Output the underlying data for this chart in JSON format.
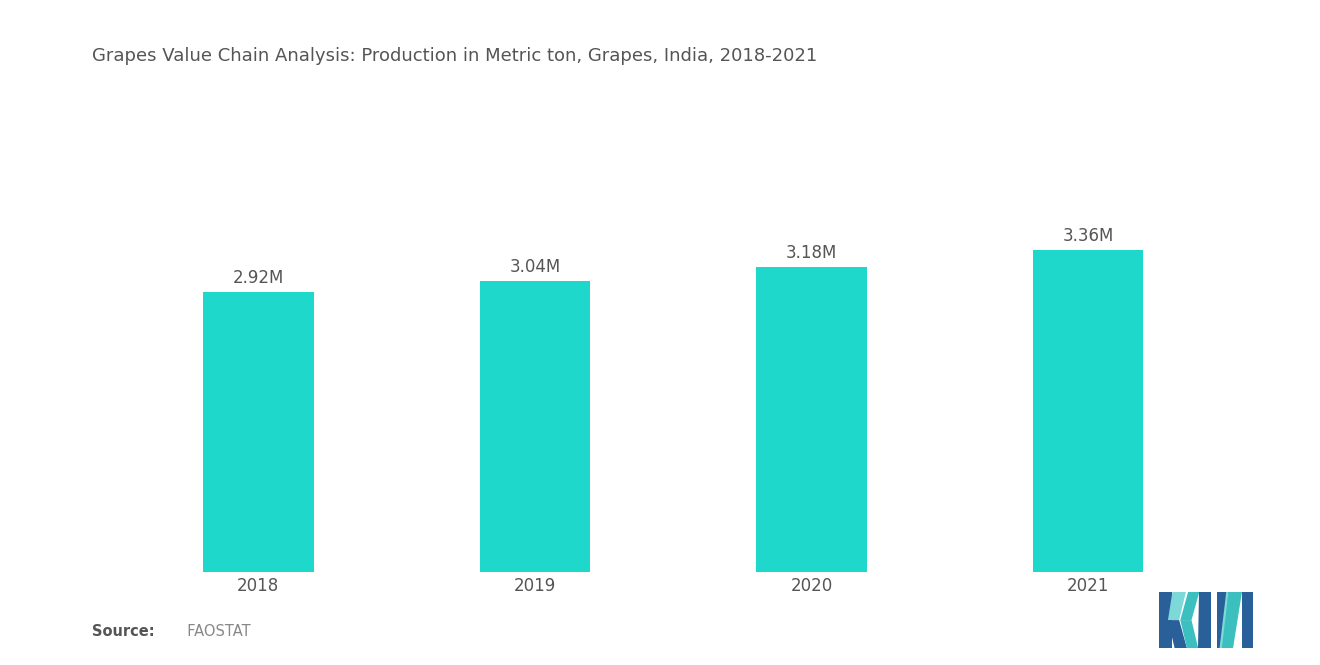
{
  "title": "Grapes Value Chain Analysis: Production in Metric ton, Grapes, India, 2018-2021",
  "categories": [
    "2018",
    "2019",
    "2020",
    "2021"
  ],
  "values": [
    2920000,
    3040000,
    3180000,
    3360000
  ],
  "labels": [
    "2.92M",
    "3.04M",
    "3.18M",
    "3.36M"
  ],
  "bar_color": "#1FD8CC",
  "background_color": "#ffffff",
  "title_fontsize": 13,
  "tick_fontsize": 12,
  "label_fontsize": 12,
  "source_bold": "Source:",
  "source_normal": "  FAOSTAT",
  "ylim": [
    0,
    5000000
  ],
  "logo_blue": "#2A6099",
  "logo_teal": "#3BBFBF",
  "logo_light_teal": "#7DD8D8"
}
